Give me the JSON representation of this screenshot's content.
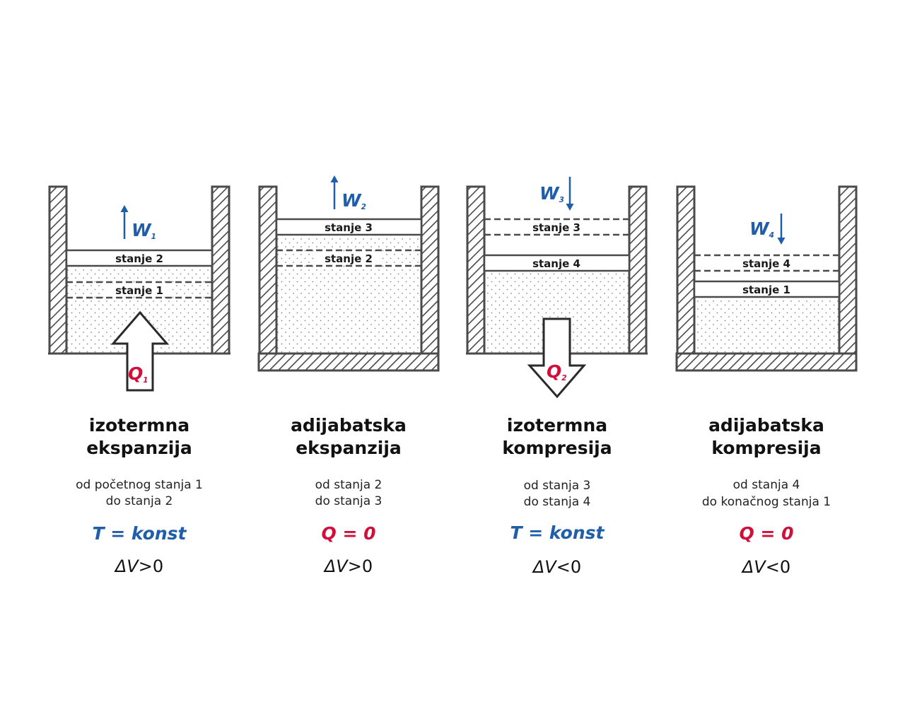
{
  "colors": {
    "outline": "#4a4a4a",
    "work_blue": "#1f5ea8",
    "heat_red": "#d0103a",
    "text": "#111111"
  },
  "panels": [
    {
      "id": "p1",
      "pistons": [
        {
          "label": "stanje 2",
          "style": "solid"
        },
        {
          "label": "stanje 1",
          "style": "dashed"
        }
      ],
      "work": {
        "letter": "W",
        "index": "1",
        "direction": "up"
      },
      "heat": {
        "letter": "Q",
        "index": "1",
        "direction": "in"
      },
      "title_line1": "izotermna",
      "title_line2": "ekspanzija",
      "desc_line1": "od početnog stanja 1",
      "desc_line2": "do stanja 2",
      "condition": "T = konst",
      "condition_color": "blue",
      "delta_symbol": "ΔV",
      "delta_relation": ">0"
    },
    {
      "id": "p2",
      "pistons": [
        {
          "label": "stanje 3",
          "style": "solid"
        },
        {
          "label": "stanje 2",
          "style": "dashed"
        }
      ],
      "work": {
        "letter": "W",
        "index": "2",
        "direction": "up"
      },
      "title_line1": "adijabatska",
      "title_line2": "ekspanzija",
      "desc_line1": "od stanja 2",
      "desc_line2": "do stanja 3",
      "condition": "Q = 0",
      "condition_color": "red",
      "delta_symbol": "ΔV",
      "delta_relation": ">0"
    },
    {
      "id": "p3",
      "pistons": [
        {
          "label": "stanje 3",
          "style": "dashed"
        },
        {
          "label": "stanje 4",
          "style": "solid"
        }
      ],
      "work": {
        "letter": "W",
        "index": "3",
        "direction": "down"
      },
      "heat": {
        "letter": "Q",
        "index": "2",
        "direction": "out"
      },
      "title_line1": "izotermna",
      "title_line2": "kompresija",
      "desc_line1": "od stanja 3",
      "desc_line2": "do stanja 4",
      "condition": "T = konst",
      "condition_color": "blue",
      "delta_symbol": "ΔV",
      "delta_relation": "<0"
    },
    {
      "id": "p4",
      "pistons": [
        {
          "label": "stanje 4",
          "style": "dashed"
        },
        {
          "label": "stanje 1",
          "style": "solid"
        }
      ],
      "work": {
        "letter": "W",
        "index": "4",
        "direction": "down"
      },
      "title_line1": "adijabatska",
      "title_line2": "kompresija",
      "desc_line1": "od stanja 4",
      "desc_line2": "do konačnog stanja 1",
      "condition": "Q = 0",
      "condition_color": "red",
      "delta_symbol": "ΔV",
      "delta_relation": "<0"
    }
  ]
}
